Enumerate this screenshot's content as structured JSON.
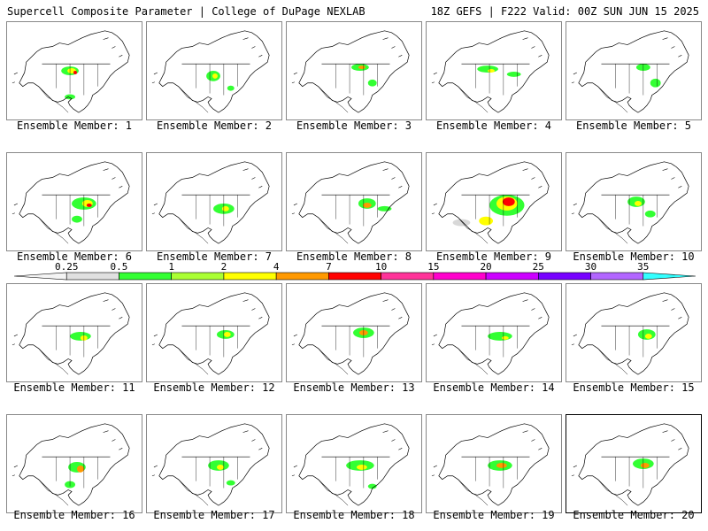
{
  "header": {
    "title": "Supercell Composite Parameter | College of DuPage NEXLAB",
    "run_info": "18Z GEFS | F222 Valid: 00Z SUN JUN 15 2025"
  },
  "members": [
    {
      "label": "Ensemble Member: 1"
    },
    {
      "label": "Ensemble Member: 2"
    },
    {
      "label": "Ensemble Member: 3"
    },
    {
      "label": "Ensemble Member: 4"
    },
    {
      "label": "Ensemble Member: 5"
    },
    {
      "label": "Ensemble Member: 6"
    },
    {
      "label": "Ensemble Member: 7"
    },
    {
      "label": "Ensemble Member: 8"
    },
    {
      "label": "Ensemble Member: 9"
    },
    {
      "label": "Ensemble Member: 10"
    },
    {
      "label": "Ensemble Member: 11"
    },
    {
      "label": "Ensemble Member: 12"
    },
    {
      "label": "Ensemble Member: 13"
    },
    {
      "label": "Ensemble Member: 14"
    },
    {
      "label": "Ensemble Member: 15"
    },
    {
      "label": "Ensemble Member: 16"
    },
    {
      "label": "Ensemble Member: 17"
    },
    {
      "label": "Ensemble Member: 18"
    },
    {
      "label": "Ensemble Member: 19"
    },
    {
      "label": "Ensemble Member: 20"
    }
  ],
  "selected_member": 20,
  "colorbar": {
    "ticks": [
      "0.25",
      "0.5",
      "1",
      "2",
      "4",
      "7",
      "10",
      "15",
      "20",
      "25",
      "30",
      "35"
    ],
    "colors": [
      "#f4f4f4",
      "#e0e0e0",
      "#33ff33",
      "#aaff33",
      "#ffff00",
      "#ff9900",
      "#ff0000",
      "#ff3399",
      "#ff00cc",
      "#cc00ff",
      "#7700ff",
      "#b266ff",
      "#33ffff"
    ]
  }
}
